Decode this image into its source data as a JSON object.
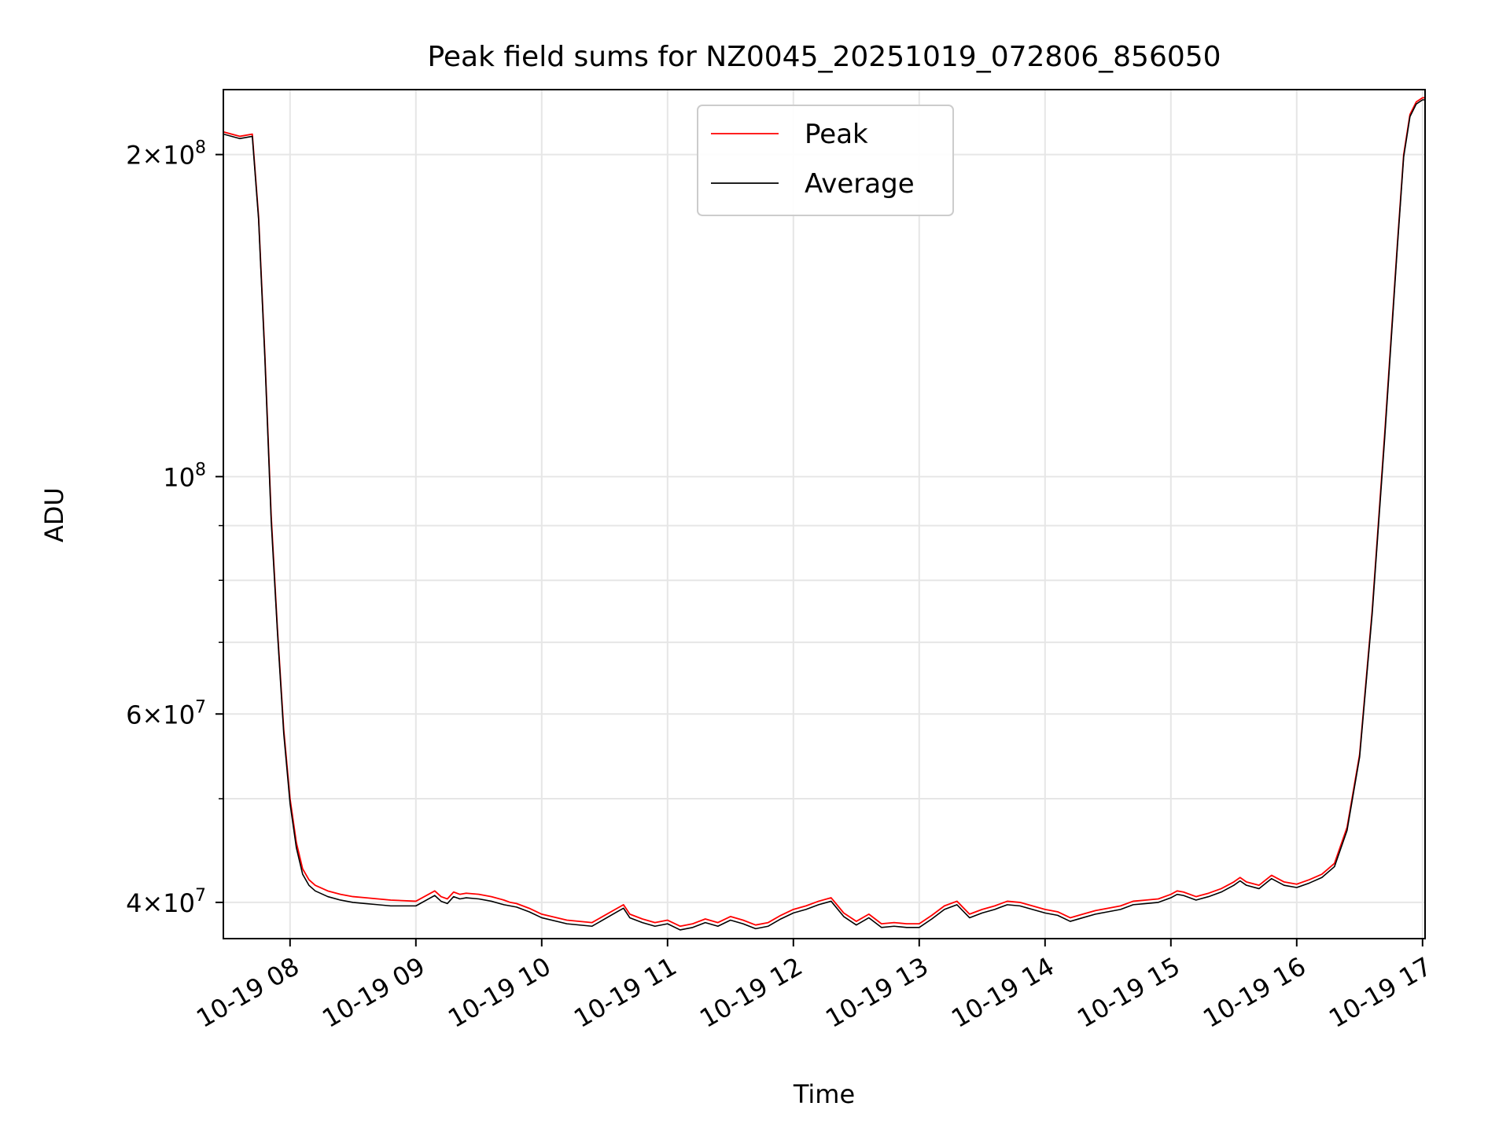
{
  "colors": {
    "peak": "#ff0000",
    "average": "#000000",
    "grid": "#e6e6e6",
    "frame": "#000000"
  },
  "chart_data": {
    "type": "line",
    "title": "Peak field sums for NZ0045_20251019_072806_856050",
    "xlabel": "Time",
    "ylabel": "ADU",
    "yscale": "log",
    "xlim": [
      7.47,
      17.02
    ],
    "ylim": [
      37000000,
      230000000
    ],
    "grid": true,
    "legend_position": "top-center",
    "x_ticks": [
      {
        "value": 8,
        "label": "10-19 08"
      },
      {
        "value": 9,
        "label": "10-19 09"
      },
      {
        "value": 10,
        "label": "10-19 10"
      },
      {
        "value": 11,
        "label": "10-19 11"
      },
      {
        "value": 12,
        "label": "10-19 12"
      },
      {
        "value": 13,
        "label": "10-19 13"
      },
      {
        "value": 14,
        "label": "10-19 14"
      },
      {
        "value": 15,
        "label": "10-19 15"
      },
      {
        "value": 16,
        "label": "10-19 16"
      },
      {
        "value": 17,
        "label": "10-19 17"
      }
    ],
    "y_ticks": [
      {
        "value": 40000000,
        "mantissa": "4",
        "exponent": "7",
        "label": "4×10^7"
      },
      {
        "value": 60000000,
        "mantissa": "6",
        "exponent": "7",
        "label": "6×10^7"
      },
      {
        "value": 100000000,
        "mantissa": "",
        "exponent": "8",
        "label": "10^8"
      },
      {
        "value": 200000000,
        "mantissa": "2",
        "exponent": "8",
        "label": "2×10^8"
      }
    ],
    "y_minor_ticks": [
      50000000,
      70000000,
      80000000,
      90000000
    ],
    "series": [
      {
        "name": "Peak",
        "color": "#ff0000",
        "x": [
          7.47,
          7.6,
          7.7,
          7.75,
          7.8,
          7.85,
          7.9,
          7.95,
          8.0,
          8.05,
          8.1,
          8.15,
          8.2,
          8.3,
          8.4,
          8.5,
          8.6,
          8.7,
          8.8,
          9.0,
          9.15,
          9.2,
          9.25,
          9.3,
          9.35,
          9.4,
          9.5,
          9.6,
          9.7,
          9.75,
          9.8,
          9.9,
          10.0,
          10.2,
          10.4,
          10.6,
          10.65,
          10.7,
          10.8,
          10.9,
          11.0,
          11.1,
          11.2,
          11.3,
          11.4,
          11.5,
          11.6,
          11.7,
          11.8,
          11.9,
          12.0,
          12.1,
          12.2,
          12.3,
          12.4,
          12.5,
          12.6,
          12.7,
          12.8,
          12.9,
          13.0,
          13.1,
          13.2,
          13.3,
          13.4,
          13.5,
          13.6,
          13.7,
          13.8,
          13.9,
          14.0,
          14.1,
          14.2,
          14.3,
          14.4,
          14.5,
          14.6,
          14.7,
          14.8,
          14.9,
          15.0,
          15.05,
          15.1,
          15.2,
          15.3,
          15.4,
          15.5,
          15.55,
          15.6,
          15.7,
          15.8,
          15.9,
          16.0,
          16.1,
          16.2,
          16.3,
          16.4,
          16.5,
          16.6,
          16.7,
          16.8,
          16.85,
          16.9,
          16.95,
          17.0,
          17.02
        ],
        "y": [
          210000000,
          208000000,
          209000000,
          175000000,
          130000000,
          92000000,
          72000000,
          58000000,
          50000000,
          45500000,
          43000000,
          42000000,
          41500000,
          41000000,
          40700000,
          40500000,
          40400000,
          40300000,
          40200000,
          40100000,
          41000000,
          40500000,
          40300000,
          40900000,
          40700000,
          40800000,
          40700000,
          40500000,
          40200000,
          40000000,
          39900000,
          39500000,
          39000000,
          38500000,
          38300000,
          39500000,
          39800000,
          39000000,
          38600000,
          38300000,
          38500000,
          38000000,
          38200000,
          38600000,
          38300000,
          38800000,
          38500000,
          38100000,
          38300000,
          38900000,
          39400000,
          39700000,
          40100000,
          40400000,
          39100000,
          38400000,
          39000000,
          38200000,
          38300000,
          38200000,
          38200000,
          38900000,
          39700000,
          40100000,
          39000000,
          39400000,
          39700000,
          40100000,
          40000000,
          39700000,
          39400000,
          39200000,
          38700000,
          39000000,
          39300000,
          39500000,
          39700000,
          40100000,
          40200000,
          40300000,
          40700000,
          41000000,
          40900000,
          40500000,
          40800000,
          41200000,
          41800000,
          42200000,
          41800000,
          41500000,
          42400000,
          41800000,
          41600000,
          42000000,
          42500000,
          43500000,
          47000000,
          55000000,
          75000000,
          110000000,
          165000000,
          200000000,
          218000000,
          224000000,
          226000000,
          226000000
        ]
      },
      {
        "name": "Average",
        "color": "#000000",
        "x": [
          7.47,
          7.6,
          7.7,
          7.75,
          7.8,
          7.85,
          7.9,
          7.95,
          8.0,
          8.05,
          8.1,
          8.15,
          8.2,
          8.3,
          8.4,
          8.5,
          8.6,
          8.7,
          8.8,
          9.0,
          9.15,
          9.2,
          9.25,
          9.3,
          9.35,
          9.4,
          9.5,
          9.6,
          9.7,
          9.75,
          9.8,
          9.9,
          10.0,
          10.2,
          10.4,
          10.6,
          10.65,
          10.7,
          10.8,
          10.9,
          11.0,
          11.1,
          11.2,
          11.3,
          11.4,
          11.5,
          11.6,
          11.7,
          11.8,
          11.9,
          12.0,
          12.1,
          12.2,
          12.3,
          12.4,
          12.5,
          12.6,
          12.7,
          12.8,
          12.9,
          13.0,
          13.1,
          13.2,
          13.3,
          13.4,
          13.5,
          13.6,
          13.7,
          13.8,
          13.9,
          14.0,
          14.1,
          14.2,
          14.3,
          14.4,
          14.5,
          14.6,
          14.7,
          14.8,
          14.9,
          15.0,
          15.05,
          15.1,
          15.2,
          15.3,
          15.4,
          15.5,
          15.55,
          15.6,
          15.7,
          15.8,
          15.9,
          16.0,
          16.1,
          16.2,
          16.3,
          16.4,
          16.5,
          16.6,
          16.7,
          16.8,
          16.85,
          16.9,
          16.95,
          17.0,
          17.02
        ],
        "y": [
          209000000,
          207000000,
          208000000,
          174000000,
          129000000,
          91000000,
          71500000,
          57500000,
          49500000,
          45000000,
          42500000,
          41500000,
          41000000,
          40500000,
          40200000,
          40000000,
          39900000,
          39800000,
          39700000,
          39700000,
          40600000,
          40100000,
          39900000,
          40500000,
          40300000,
          40400000,
          40300000,
          40100000,
          39800000,
          39700000,
          39600000,
          39200000,
          38700000,
          38200000,
          38000000,
          39200000,
          39500000,
          38700000,
          38300000,
          38000000,
          38200000,
          37700000,
          37900000,
          38300000,
          38000000,
          38500000,
          38200000,
          37800000,
          38000000,
          38600000,
          39100000,
          39400000,
          39800000,
          40100000,
          38800000,
          38100000,
          38700000,
          37900000,
          38000000,
          37900000,
          37900000,
          38600000,
          39400000,
          39800000,
          38700000,
          39100000,
          39400000,
          39800000,
          39700000,
          39400000,
          39100000,
          38900000,
          38400000,
          38700000,
          39000000,
          39200000,
          39400000,
          39800000,
          39900000,
          40000000,
          40400000,
          40700000,
          40600000,
          40200000,
          40500000,
          40900000,
          41500000,
          41900000,
          41500000,
          41200000,
          42100000,
          41500000,
          41300000,
          41700000,
          42200000,
          43200000,
          46700000,
          54700000,
          74500000,
          109000000,
          164000000,
          199000000,
          217000000,
          223000000,
          225000000,
          225000000
        ]
      }
    ]
  }
}
